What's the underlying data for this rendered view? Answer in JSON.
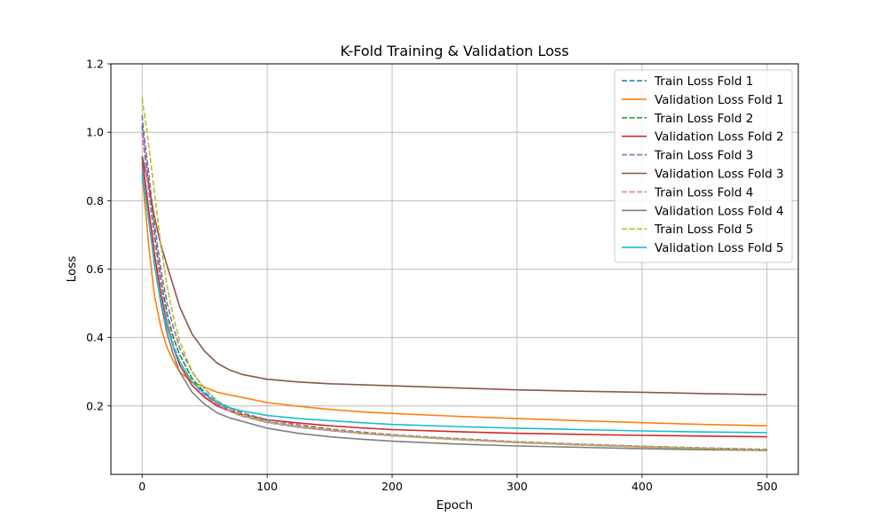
{
  "chart_data": {
    "type": "line",
    "title": "K-Fold Training & Validation Loss",
    "xlabel": "Epoch",
    "ylabel": "Loss",
    "xlim": [
      -25,
      525
    ],
    "ylim": [
      0.0,
      1.2
    ],
    "xticks": [
      0,
      100,
      200,
      300,
      400,
      500
    ],
    "yticks": [
      0.2,
      0.4,
      0.6,
      0.8,
      1.0,
      1.2
    ],
    "grid": true,
    "legend_position": "upper right",
    "x": [
      0,
      2,
      5,
      8,
      10,
      15,
      20,
      25,
      30,
      40,
      50,
      60,
      70,
      80,
      100,
      125,
      150,
      175,
      200,
      250,
      300,
      350,
      400,
      450,
      500
    ],
    "series": [
      {
        "name": "Train Loss Fold 1",
        "style": "dashed",
        "color": "#1f77b4",
        "values": [
          1.02,
          0.95,
          0.86,
          0.76,
          0.7,
          0.57,
          0.47,
          0.4,
          0.35,
          0.28,
          0.24,
          0.21,
          0.19,
          0.175,
          0.155,
          0.14,
          0.13,
          0.12,
          0.115,
          0.105,
          0.095,
          0.088,
          0.082,
          0.077,
          0.072
        ]
      },
      {
        "name": "Validation Loss Fold 1",
        "style": "solid",
        "color": "#ff7f0e",
        "values": [
          0.88,
          0.8,
          0.68,
          0.58,
          0.52,
          0.43,
          0.37,
          0.33,
          0.3,
          0.27,
          0.255,
          0.24,
          0.232,
          0.225,
          0.21,
          0.199,
          0.19,
          0.183,
          0.178,
          0.17,
          0.163,
          0.157,
          0.151,
          0.146,
          0.142
        ]
      },
      {
        "name": "Train Loss Fold 2",
        "style": "dashed",
        "color": "#2ca02c",
        "values": [
          1.0,
          0.94,
          0.85,
          0.76,
          0.7,
          0.57,
          0.47,
          0.4,
          0.35,
          0.28,
          0.235,
          0.205,
          0.185,
          0.17,
          0.152,
          0.138,
          0.128,
          0.12,
          0.113,
          0.102,
          0.093,
          0.086,
          0.08,
          0.075,
          0.07
        ]
      },
      {
        "name": "Validation Loss Fold 2",
        "style": "solid",
        "color": "#d62728",
        "values": [
          0.93,
          0.87,
          0.78,
          0.7,
          0.64,
          0.53,
          0.44,
          0.37,
          0.32,
          0.26,
          0.225,
          0.2,
          0.185,
          0.175,
          0.16,
          0.15,
          0.142,
          0.136,
          0.131,
          0.125,
          0.12,
          0.117,
          0.114,
          0.112,
          0.11
        ]
      },
      {
        "name": "Train Loss Fold 3",
        "style": "dashed",
        "color": "#9467bd",
        "values": [
          1.05,
          0.98,
          0.89,
          0.79,
          0.73,
          0.6,
          0.5,
          0.43,
          0.37,
          0.3,
          0.25,
          0.215,
          0.195,
          0.18,
          0.16,
          0.145,
          0.133,
          0.124,
          0.116,
          0.104,
          0.095,
          0.088,
          0.082,
          0.077,
          0.073
        ]
      },
      {
        "name": "Validation Loss Fold 3",
        "style": "solid",
        "color": "#8c564b",
        "values": [
          0.93,
          0.9,
          0.85,
          0.79,
          0.75,
          0.67,
          0.61,
          0.55,
          0.49,
          0.41,
          0.36,
          0.325,
          0.305,
          0.292,
          0.278,
          0.27,
          0.265,
          0.262,
          0.259,
          0.253,
          0.247,
          0.243,
          0.24,
          0.236,
          0.233
        ]
      },
      {
        "name": "Train Loss Fold 4",
        "style": "dashed",
        "color": "#e377c2",
        "values": [
          1.0,
          0.93,
          0.83,
          0.74,
          0.68,
          0.55,
          0.45,
          0.38,
          0.33,
          0.27,
          0.23,
          0.205,
          0.185,
          0.17,
          0.152,
          0.138,
          0.128,
          0.12,
          0.113,
          0.102,
          0.093,
          0.086,
          0.08,
          0.075,
          0.07
        ]
      },
      {
        "name": "Validation Loss Fold 4",
        "style": "solid",
        "color": "#7f7f7f",
        "values": [
          0.91,
          0.84,
          0.75,
          0.67,
          0.61,
          0.5,
          0.41,
          0.35,
          0.3,
          0.24,
          0.205,
          0.18,
          0.165,
          0.155,
          0.135,
          0.12,
          0.11,
          0.103,
          0.097,
          0.089,
          0.083,
          0.079,
          0.075,
          0.072,
          0.07
        ]
      },
      {
        "name": "Train Loss Fold 5",
        "style": "dashed",
        "color": "#bcbd22",
        "values": [
          1.1,
          1.05,
          0.97,
          0.88,
          0.82,
          0.67,
          0.55,
          0.46,
          0.39,
          0.3,
          0.25,
          0.215,
          0.19,
          0.175,
          0.155,
          0.14,
          0.13,
          0.121,
          0.114,
          0.103,
          0.094,
          0.087,
          0.081,
          0.076,
          0.071
        ]
      },
      {
        "name": "Validation Loss Fold 5",
        "style": "solid",
        "color": "#17becf",
        "values": [
          0.88,
          0.83,
          0.75,
          0.67,
          0.61,
          0.51,
          0.43,
          0.37,
          0.33,
          0.27,
          0.235,
          0.21,
          0.195,
          0.185,
          0.172,
          0.163,
          0.157,
          0.151,
          0.146,
          0.14,
          0.135,
          0.131,
          0.127,
          0.124,
          0.122
        ]
      }
    ]
  }
}
